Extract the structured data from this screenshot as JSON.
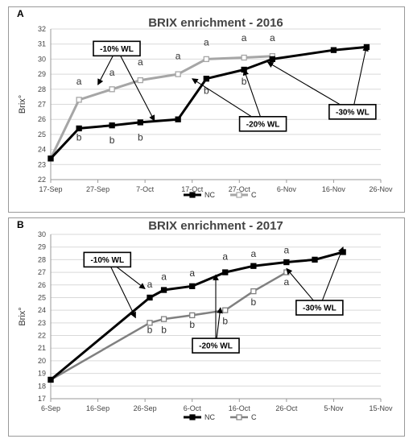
{
  "chart_data": [
    {
      "panel_label": "A",
      "type": "line",
      "title": "BRIX enrichment - 2016",
      "ylabel": "Brix°",
      "xlabel": "",
      "ylim": [
        22,
        32
      ],
      "yticks": [
        22,
        23,
        24,
        25,
        26,
        27,
        28,
        29,
        30,
        31,
        32
      ],
      "xlim": [
        "2016-09-17",
        "2016-11-26"
      ],
      "xticks": [
        {
          "date": "2016-09-17",
          "label": "17-Sep"
        },
        {
          "date": "2016-09-27",
          "label": "27-Sep"
        },
        {
          "date": "2016-10-07",
          "label": "7-Oct"
        },
        {
          "date": "2016-10-17",
          "label": "17-Oct"
        },
        {
          "date": "2016-10-27",
          "label": "27-Oct"
        },
        {
          "date": "2016-11-06",
          "label": "6-Nov"
        },
        {
          "date": "2016-11-16",
          "label": "16-Nov"
        },
        {
          "date": "2016-11-26",
          "label": "26-Nov"
        }
      ],
      "grid": true,
      "legend_position": "bottom",
      "series": [
        {
          "name": "NC",
          "color": "#000000",
          "marker": "filled-square",
          "line_width": 3,
          "points": [
            [
              "2016-09-17",
              23.4
            ],
            [
              "2016-09-23",
              25.4
            ],
            [
              "2016-09-30",
              25.6
            ],
            [
              "2016-10-06",
              25.8
            ],
            [
              "2016-10-14",
              26.0
            ],
            [
              "2016-10-20",
              28.7
            ],
            [
              "2016-10-28",
              29.3
            ],
            [
              "2016-11-03",
              30.0
            ],
            [
              "2016-11-16",
              30.6
            ],
            [
              "2016-11-23",
              30.8
            ]
          ]
        },
        {
          "name": "C",
          "color": "#a6a6a6",
          "marker": "open-square",
          "line_width": 3,
          "points": [
            [
              "2016-09-17",
              23.4
            ],
            [
              "2016-09-23",
              27.3
            ],
            [
              "2016-09-30",
              28.0
            ],
            [
              "2016-10-06",
              28.6
            ],
            [
              "2016-10-14",
              29.0
            ],
            [
              "2016-10-20",
              30.0
            ],
            [
              "2016-10-28",
              30.1
            ],
            [
              "2016-11-03",
              30.2
            ]
          ]
        }
      ],
      "letters": [
        {
          "text": "a",
          "x": "2016-09-23",
          "y": 28.3
        },
        {
          "text": "a",
          "x": "2016-09-30",
          "y": 28.9
        },
        {
          "text": "a",
          "x": "2016-10-06",
          "y": 29.6
        },
        {
          "text": "a",
          "x": "2016-10-14",
          "y": 30.0
        },
        {
          "text": "a",
          "x": "2016-10-20",
          "y": 30.9
        },
        {
          "text": "a",
          "x": "2016-10-28",
          "y": 31.2
        },
        {
          "text": "a",
          "x": "2016-11-03",
          "y": 31.2
        },
        {
          "text": "b",
          "x": "2016-09-23",
          "y": 24.6
        },
        {
          "text": "b",
          "x": "2016-09-30",
          "y": 24.4
        },
        {
          "text": "b",
          "x": "2016-10-06",
          "y": 24.6
        },
        {
          "text": "b",
          "x": "2016-10-20",
          "y": 27.7
        },
        {
          "text": "b",
          "x": "2016-10-28",
          "y": 28.3
        }
      ],
      "annotations": [
        {
          "text": "-10% WL",
          "box_at": [
            "2016-10-01",
            30.7
          ],
          "targets": [
            [
              "2016-09-27",
              28.3
            ],
            [
              "2016-10-09",
              25.9
            ]
          ]
        },
        {
          "text": "-20% WL",
          "box_at": [
            "2016-11-01",
            25.7
          ],
          "targets": [
            [
              "2016-10-28",
              29.3
            ],
            [
              "2016-10-17",
              28.7
            ]
          ]
        },
        {
          "text": "-30% WL",
          "box_at": [
            "2016-11-20",
            26.5
          ],
          "targets": [
            [
              "2016-11-02",
              29.8
            ],
            [
              "2016-11-23",
              30.9
            ]
          ]
        }
      ]
    },
    {
      "panel_label": "B",
      "type": "line",
      "title": "BRIX enrichment - 2017",
      "ylabel": "Brix°",
      "xlabel": "",
      "ylim": [
        17,
        30
      ],
      "yticks": [
        17,
        18,
        19,
        20,
        21,
        22,
        23,
        24,
        25,
        26,
        27,
        28,
        29,
        30
      ],
      "xlim": [
        "2017-09-06",
        "2017-11-15"
      ],
      "xticks": [
        {
          "date": "2017-09-06",
          "label": "6-Sep"
        },
        {
          "date": "2017-09-16",
          "label": "16-Sep"
        },
        {
          "date": "2017-09-26",
          "label": "26-Sep"
        },
        {
          "date": "2017-10-06",
          "label": "6-Oct"
        },
        {
          "date": "2017-10-16",
          "label": "16-Oct"
        },
        {
          "date": "2017-10-26",
          "label": "26-Oct"
        },
        {
          "date": "2017-11-05",
          "label": "5-Nov"
        },
        {
          "date": "2017-11-15",
          "label": "15-Nov"
        }
      ],
      "grid": true,
      "legend_position": "bottom",
      "series": [
        {
          "name": "NC",
          "color": "#000000",
          "marker": "filled-square",
          "line_width": 3,
          "points": [
            [
              "2017-09-06",
              18.5
            ],
            [
              "2017-09-27",
              25.0
            ],
            [
              "2017-09-30",
              25.6
            ],
            [
              "2017-10-06",
              25.9
            ],
            [
              "2017-10-13",
              27.0
            ],
            [
              "2017-10-19",
              27.5
            ],
            [
              "2017-10-26",
              27.8
            ],
            [
              "2017-11-01",
              28.0
            ],
            [
              "2017-11-07",
              28.6
            ]
          ]
        },
        {
          "name": "C",
          "color": "#808080",
          "marker": "open-square",
          "line_width": 2.5,
          "points": [
            [
              "2017-09-06",
              18.5
            ],
            [
              "2017-09-27",
              23.0
            ],
            [
              "2017-09-30",
              23.3
            ],
            [
              "2017-10-06",
              23.6
            ],
            [
              "2017-10-13",
              24.0
            ],
            [
              "2017-10-19",
              25.5
            ],
            [
              "2017-10-26",
              27.0
            ]
          ]
        }
      ],
      "letters": [
        {
          "text": "a",
          "x": "2017-09-27",
          "y": 25.8
        },
        {
          "text": "a",
          "x": "2017-09-30",
          "y": 26.4
        },
        {
          "text": "a",
          "x": "2017-10-06",
          "y": 26.7
        },
        {
          "text": "a",
          "x": "2017-10-13",
          "y": 28.0
        },
        {
          "text": "a",
          "x": "2017-10-19",
          "y": 28.2
        },
        {
          "text": "a",
          "x": "2017-10-26",
          "y": 28.5
        },
        {
          "text": "a",
          "x": "2017-10-26",
          "y": 26.0
        },
        {
          "text": "b",
          "x": "2017-09-27",
          "y": 22.2
        },
        {
          "text": "b",
          "x": "2017-09-30",
          "y": 22.2
        },
        {
          "text": "b",
          "x": "2017-10-06",
          "y": 22.6
        },
        {
          "text": "b",
          "x": "2017-10-13",
          "y": 22.9
        },
        {
          "text": "b",
          "x": "2017-10-19",
          "y": 24.4
        }
      ],
      "annotations": [
        {
          "text": "-10% WL",
          "box_at": [
            "2017-09-18",
            28.0
          ],
          "targets": [
            [
              "2017-09-26",
              25.7
            ],
            [
              "2017-09-24",
              23.4
            ]
          ]
        },
        {
          "text": "-20% WL",
          "box_at": [
            "2017-10-11",
            21.2
          ],
          "targets": [
            [
              "2017-10-12",
              24.2
            ],
            [
              "2017-10-11",
              26.8
            ]
          ]
        },
        {
          "text": "-30% WL",
          "box_at": [
            "2017-11-02",
            24.2
          ],
          "targets": [
            [
              "2017-10-26",
              27.3
            ],
            [
              "2017-11-07",
              29.0
            ]
          ]
        }
      ]
    }
  ]
}
